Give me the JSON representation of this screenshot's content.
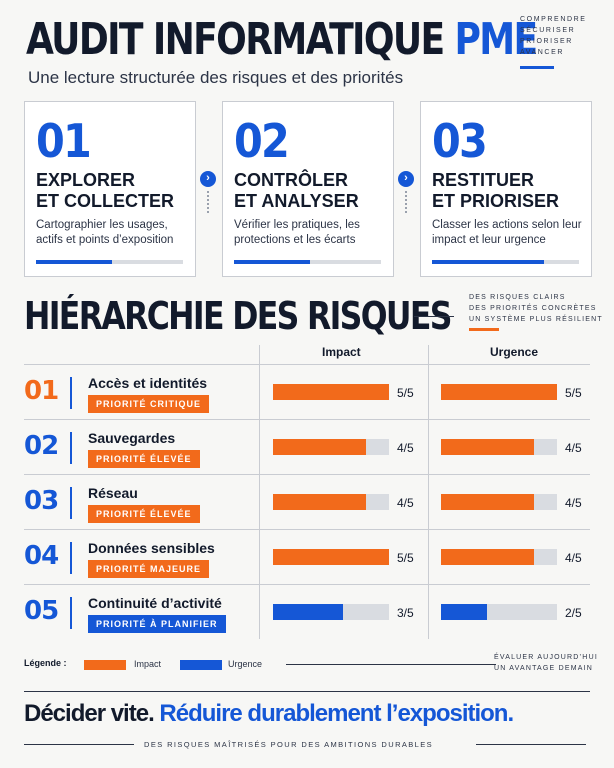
{
  "header": {
    "title_main": "AUDIT INFORMATIQUE ",
    "title_accent": "PME",
    "subtitle": "Une lecture structurée des risques et des priorités",
    "tagline": [
      "COMPRENDRE",
      "SÉCURISER",
      "PRIORISER",
      "AVANCER"
    ]
  },
  "steps": [
    {
      "num": "01",
      "title": "EXPLORER\nET COLLECTER",
      "desc": "Cartographier les usages, actifs et points d’exposition",
      "progress": 0.52
    },
    {
      "num": "02",
      "title": "CONTRÔLER\nET ANALYSER",
      "desc": "Vérifier les pratiques, les protections et les écarts",
      "progress": 0.52
    },
    {
      "num": "03",
      "title": "RESTITUER\nET PRIORISER",
      "desc": "Classer les actions selon leur impact et leur urgence",
      "progress": 0.76
    }
  ],
  "risks_section": {
    "title": "HIÉRARCHIE DES RISQUES",
    "note": [
      "DES RISQUES CLAIRS",
      "DES PRIORITÉS CONCRÈTES",
      "UN SYSTÈME PLUS RÉSILIENT"
    ],
    "impact_header": "Impact",
    "urgence_header": "Urgence"
  },
  "risks": [
    {
      "num": "01",
      "name": "Accès et identités",
      "badge": "PRIORITÉ CRITIQUE",
      "impact": 5,
      "impact_label": "5/5",
      "urgence": 5,
      "urgence_label": "5/5",
      "color": "#f26a1b"
    },
    {
      "num": "02",
      "name": "Sauvegardes",
      "badge": "PRIORITÉ ÉLEVÉE",
      "impact": 4,
      "impact_label": "4/5",
      "urgence": 4,
      "urgence_label": "4/5",
      "color": "#f26a1b"
    },
    {
      "num": "03",
      "name": "Réseau",
      "badge": "PRIORITÉ ÉLEVÉE",
      "impact": 4,
      "impact_label": "4/5",
      "urgence": 4,
      "urgence_label": "4/5",
      "color": "#f26a1b"
    },
    {
      "num": "04",
      "name": "Données sensibles",
      "badge": "PRIORITÉ MAJEURE",
      "impact": 5,
      "impact_label": "5/5",
      "urgence": 4,
      "urgence_label": "4/5",
      "color": "#f26a1b"
    },
    {
      "num": "05",
      "name": "Continuité d’activité",
      "badge": "PRIORITÉ À PLANIFIER",
      "impact": 3,
      "impact_label": "3/5",
      "urgence": 2,
      "urgence_label": "2/5",
      "color": "#1557d6"
    }
  ],
  "number_colors": [
    "#f26a1b",
    "#1557d6",
    "#1557d6",
    "#1557d6",
    "#1557d6"
  ],
  "legend": {
    "title": "Légende :",
    "impact_label": "Impact",
    "impact_color": "#f26a1b",
    "urgence_label": "Urgence",
    "urgence_color": "#1557d6",
    "note": [
      "ÉVALUER AUJOURD’HUI",
      "UN AVANTAGE DEMAIN"
    ]
  },
  "footer": {
    "main": "Décider vite. ",
    "accent": "Réduire durablement l’exposition.",
    "sub": "DES RISQUES MAÎTRISÉS POUR DES AMBITIONS DURABLES"
  }
}
